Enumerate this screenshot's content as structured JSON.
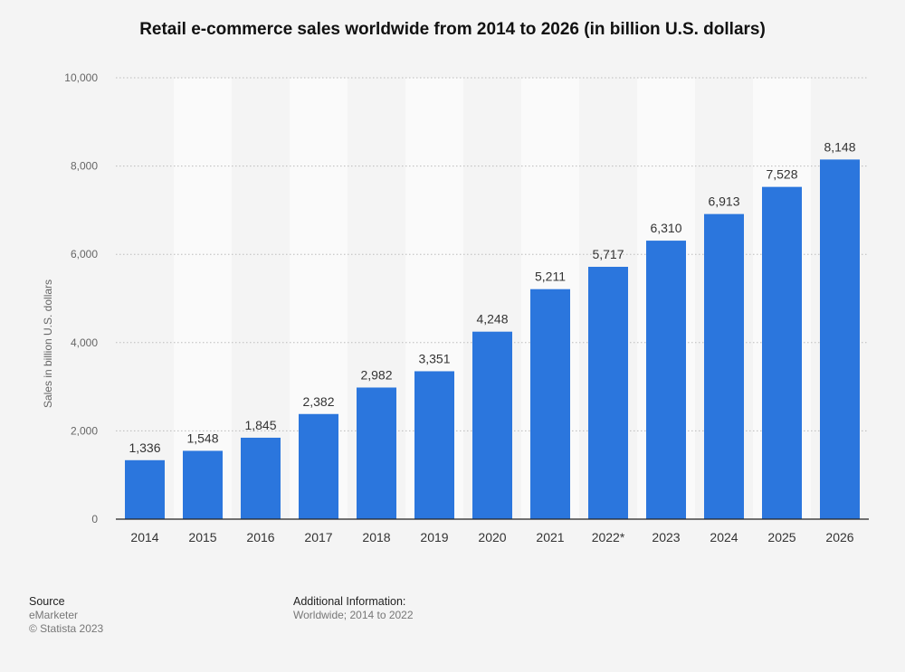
{
  "chart_data": {
    "type": "bar",
    "title": "Retail e-commerce sales worldwide from 2014 to 2026 (in billion U.S. dollars)",
    "xlabel": "",
    "ylabel": "Sales in billion U.S. dollars",
    "categories": [
      "2014",
      "2015",
      "2016",
      "2017",
      "2018",
      "2019",
      "2020",
      "2021",
      "2022*",
      "2023",
      "2024",
      "2025",
      "2026"
    ],
    "values": [
      1336,
      1548,
      1845,
      2382,
      2982,
      3351,
      4248,
      5211,
      5717,
      6310,
      6913,
      7528,
      8148
    ],
    "value_labels": [
      "1,336",
      "1,548",
      "1,845",
      "2,382",
      "2,982",
      "3,351",
      "4,248",
      "5,211",
      "5,717",
      "6,310",
      "6,913",
      "7,528",
      "8,148"
    ],
    "ylim": [
      0,
      10000
    ],
    "yticks": [
      0,
      2000,
      4000,
      6000,
      8000,
      10000
    ],
    "ytick_labels": [
      "0",
      "2,000",
      "4,000",
      "6,000",
      "8,000",
      "10,000"
    ],
    "grid": true,
    "legend": "none",
    "bar_color": "#2b76dd"
  },
  "footer": {
    "source_heading": "Source",
    "source_name": "eMarketer",
    "copyright": "© Statista 2023",
    "info_heading": "Additional Information:",
    "info_text": "Worldwide; 2014 to 2022"
  }
}
